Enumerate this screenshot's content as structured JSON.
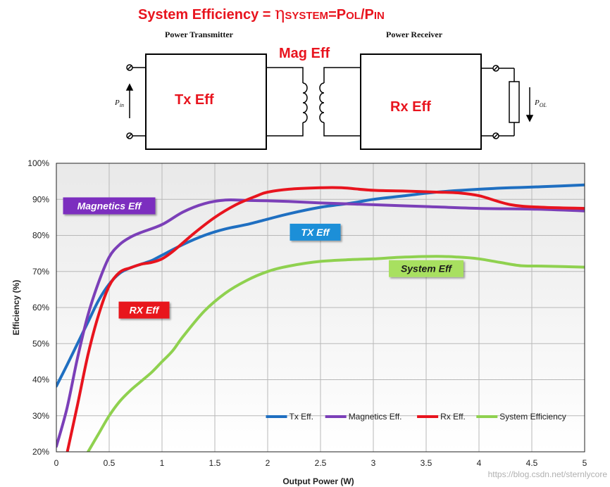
{
  "diagram": {
    "equation": {
      "lead": "System Efficiency = ",
      "eta": "η",
      "system_sub": "SYSTEM",
      "equals": "=",
      "p_big1": "P",
      "ol_sub": "OL",
      "slash": "/",
      "p_big2": "P",
      "in_sub": "IN"
    },
    "transmitter_title": "Power Transmitter",
    "receiver_title": "Power Receiver",
    "mag_eff_label": "Mag Eff",
    "tx_eff_label": "Tx Eff",
    "rx_eff_label": "Rx Eff",
    "p_in_main": "P",
    "p_in_sub": "in",
    "p_ol_main": "P",
    "p_ol_sub": "OL",
    "accent_color": "#e8141e"
  },
  "chart_data": {
    "type": "line",
    "title": "",
    "xlabel": "Output Power (W)",
    "ylabel": "Efficiency (%)",
    "xlim": [
      0,
      5
    ],
    "ylim": [
      20,
      100
    ],
    "xticks": [
      0,
      0.5,
      1,
      1.5,
      2,
      2.5,
      3,
      3.5,
      4,
      4.5,
      5
    ],
    "xtick_labels": [
      "0",
      "0.5",
      "1",
      "1.5",
      "2",
      "2.5",
      "3",
      "3.5",
      "4",
      "4.5",
      "5"
    ],
    "yticks": [
      20,
      30,
      40,
      50,
      60,
      70,
      80,
      90,
      100
    ],
    "ytick_labels": [
      "20%",
      "30%",
      "40%",
      "50%",
      "60%",
      "70%",
      "80%",
      "90%",
      "100%"
    ],
    "grid": true,
    "legend_position": "bottom-right",
    "series": [
      {
        "name": "Tx Eff.",
        "color": "#1f6fc1",
        "x": [
          0,
          0.1,
          0.2,
          0.3,
          0.4,
          0.5,
          0.6,
          0.7,
          0.8,
          0.9,
          1.0,
          1.2,
          1.4,
          1.6,
          1.8,
          2.0,
          2.2,
          2.5,
          2.8,
          3.0,
          3.3,
          3.6,
          4.0,
          4.3,
          4.6,
          5.0
        ],
        "y": [
          38.2,
          44,
          50,
          56,
          62,
          66.5,
          69.5,
          71,
          72,
          73,
          74.5,
          77.5,
          80,
          81.8,
          83,
          84.5,
          86,
          87.8,
          89,
          90,
          91,
          92,
          92.8,
          93.2,
          93.5,
          94
        ]
      },
      {
        "name": "Magnetics Eff.",
        "color": "#7b3fb8",
        "x": [
          0,
          0.1,
          0.2,
          0.3,
          0.4,
          0.5,
          0.6,
          0.7,
          0.8,
          1.0,
          1.2,
          1.4,
          1.6,
          1.8,
          2.0,
          2.2,
          2.5,
          3.0,
          3.5,
          4.0,
          4.5,
          5.0
        ],
        "y": [
          21.5,
          32,
          46,
          58,
          67,
          74,
          77.5,
          79.5,
          80.8,
          83,
          86.5,
          88.8,
          89.8,
          89.7,
          89.6,
          89.4,
          89,
          88.5,
          88,
          87.5,
          87.3,
          86.8
        ]
      },
      {
        "name": "Rx Eff.",
        "color": "#e8141e",
        "x": [
          0.1,
          0.2,
          0.3,
          0.4,
          0.5,
          0.6,
          0.7,
          0.8,
          0.9,
          1.0,
          1.1,
          1.3,
          1.5,
          1.7,
          1.9,
          2.0,
          2.2,
          2.5,
          2.7,
          3.0,
          3.3,
          3.6,
          3.8,
          4.0,
          4.3,
          4.6,
          5.0
        ],
        "y": [
          19.5,
          33,
          47,
          58,
          66,
          69.8,
          71,
          72,
          72.5,
          73.5,
          75.5,
          80.5,
          85,
          88.5,
          91,
          92,
          92.8,
          93.2,
          93.2,
          92.5,
          92.3,
          92,
          91.8,
          91,
          88.5,
          87.8,
          87.5
        ]
      },
      {
        "name": "System Efficiency",
        "color": "#8fd14f",
        "x": [
          0.3,
          0.4,
          0.5,
          0.6,
          0.7,
          0.8,
          0.9,
          1.0,
          1.1,
          1.2,
          1.4,
          1.6,
          1.8,
          2.0,
          2.2,
          2.5,
          2.8,
          3.0,
          3.3,
          3.6,
          3.8,
          4.0,
          4.2,
          4.4,
          4.6,
          5.0
        ],
        "y": [
          20,
          25,
          30,
          34,
          37,
          39.5,
          42,
          45,
          48,
          52,
          59,
          64,
          67.5,
          70,
          71.5,
          72.8,
          73.3,
          73.5,
          74,
          74.2,
          74,
          73.5,
          72.5,
          71.6,
          71.5,
          71.2
        ]
      }
    ],
    "annotations": [
      {
        "text": "Magnetics Eff",
        "fill": "#7b2fbf",
        "color": "#ffffff",
        "x": 0.5,
        "y": 88.2
      },
      {
        "text": "TX Eff",
        "fill": "#1f8fd8",
        "color": "#ffffff",
        "x": 2.45,
        "y": 80.9
      },
      {
        "text": "System Eff",
        "fill": "#a8e060",
        "color": "#1b1b1b",
        "x": 3.5,
        "y": 70.8
      },
      {
        "text": "RX Eff",
        "fill": "#e8141e",
        "color": "#ffffff",
        "x": 0.83,
        "y": 59.3
      }
    ]
  },
  "watermark": "https://blog.csdn.net/sternlycore"
}
